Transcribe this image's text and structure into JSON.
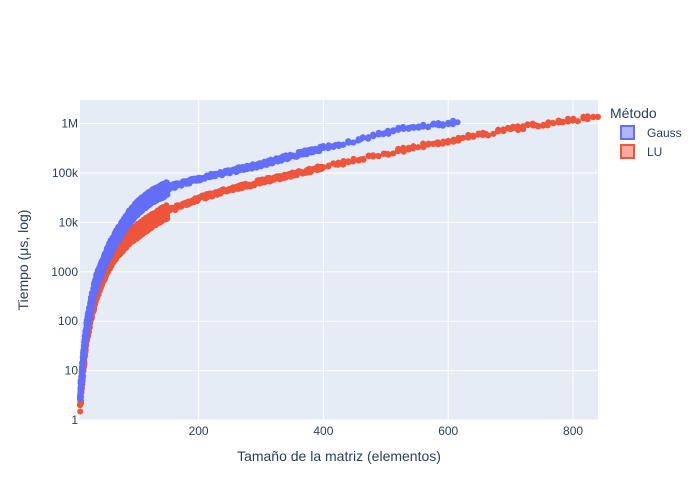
{
  "chart_data": {
    "type": "scatter",
    "title": "",
    "xlabel": "Tamaño de la matriz (elementos)",
    "ylabel": "Tiempo (μs, log)",
    "xlim": [
      10,
      840
    ],
    "ylim": [
      1,
      3000000
    ],
    "x_scale": "linear",
    "y_scale": "log",
    "x_ticks": [
      {
        "value": 200,
        "label": "200"
      },
      {
        "value": 400,
        "label": "400"
      },
      {
        "value": 600,
        "label": "600"
      },
      {
        "value": 800,
        "label": "800"
      }
    ],
    "y_ticks": [
      {
        "value": 1,
        "label": "1"
      },
      {
        "value": 10,
        "label": "10"
      },
      {
        "value": 100,
        "label": "100"
      },
      {
        "value": 1000,
        "label": "1000"
      },
      {
        "value": 10000,
        "label": "10k"
      },
      {
        "value": 100000,
        "label": "100k"
      },
      {
        "value": 1000000,
        "label": "1M"
      }
    ],
    "grid": true,
    "legend": {
      "title": "Método",
      "placement": "right"
    },
    "series": [
      {
        "name": "Gauss",
        "color": "#636efa",
        "points": [
          [
            10,
            3
          ],
          [
            12,
            6
          ],
          [
            14,
            12
          ],
          [
            16,
            22
          ],
          [
            18,
            40
          ],
          [
            20,
            60
          ],
          [
            22,
            90
          ],
          [
            25,
            140
          ],
          [
            28,
            220
          ],
          [
            30,
            300
          ],
          [
            33,
            420
          ],
          [
            36,
            600
          ],
          [
            40,
            850
          ],
          [
            45,
            1200
          ],
          [
            50,
            1700
          ],
          [
            55,
            2400
          ],
          [
            60,
            3300
          ],
          [
            65,
            4300
          ],
          [
            70,
            5500
          ],
          [
            75,
            6800
          ],
          [
            80,
            8500
          ],
          [
            85,
            10500
          ],
          [
            90,
            13000
          ],
          [
            95,
            15500
          ],
          [
            100,
            18500
          ],
          [
            110,
            24000
          ],
          [
            120,
            30000
          ],
          [
            130,
            36000
          ],
          [
            140,
            42000
          ],
          [
            150,
            48000
          ],
          [
            160,
            54000
          ],
          [
            175,
            62000
          ],
          [
            190,
            70000
          ],
          [
            200,
            76000
          ],
          [
            220,
            88000
          ],
          [
            240,
            100000
          ],
          [
            260,
            115000
          ],
          [
            280,
            130000
          ],
          [
            300,
            150000
          ],
          [
            320,
            175000
          ],
          [
            340,
            205000
          ],
          [
            360,
            240000
          ],
          [
            380,
            280000
          ],
          [
            400,
            320000
          ],
          [
            420,
            370000
          ],
          [
            440,
            420000
          ],
          [
            460,
            480000
          ],
          [
            480,
            560000
          ],
          [
            500,
            650000
          ],
          [
            520,
            750000
          ],
          [
            540,
            840000
          ],
          [
            560,
            900000
          ],
          [
            580,
            960000
          ],
          [
            600,
            1020000
          ],
          [
            615,
            1060000
          ]
        ]
      },
      {
        "name": "LU",
        "color": "#ef553b",
        "points": [
          [
            10,
            2
          ],
          [
            12,
            4
          ],
          [
            14,
            8
          ],
          [
            16,
            15
          ],
          [
            18,
            26
          ],
          [
            20,
            40
          ],
          [
            22,
            58
          ],
          [
            25,
            90
          ],
          [
            28,
            140
          ],
          [
            30,
            180
          ],
          [
            33,
            260
          ],
          [
            36,
            360
          ],
          [
            40,
            500
          ],
          [
            45,
            720
          ],
          [
            50,
            1000
          ],
          [
            55,
            1350
          ],
          [
            60,
            1750
          ],
          [
            65,
            2200
          ],
          [
            70,
            2700
          ],
          [
            75,
            3200
          ],
          [
            80,
            3800
          ],
          [
            85,
            4400
          ],
          [
            90,
            5000
          ],
          [
            95,
            5700
          ],
          [
            100,
            6400
          ],
          [
            110,
            8000
          ],
          [
            120,
            9800
          ],
          [
            130,
            11800
          ],
          [
            140,
            14000
          ],
          [
            150,
            16500
          ],
          [
            160,
            19000
          ],
          [
            175,
            23000
          ],
          [
            190,
            27000
          ],
          [
            200,
            30000
          ],
          [
            220,
            36000
          ],
          [
            240,
            43000
          ],
          [
            260,
            50000
          ],
          [
            280,
            58000
          ],
          [
            300,
            67000
          ],
          [
            320,
            77000
          ],
          [
            340,
            88000
          ],
          [
            360,
            100000
          ],
          [
            380,
            115000
          ],
          [
            400,
            130000
          ],
          [
            420,
            148000
          ],
          [
            440,
            168000
          ],
          [
            460,
            190000
          ],
          [
            480,
            215000
          ],
          [
            500,
            245000
          ],
          [
            520,
            280000
          ],
          [
            540,
            320000
          ],
          [
            560,
            360000
          ],
          [
            580,
            400000
          ],
          [
            600,
            450000
          ],
          [
            620,
            500000
          ],
          [
            640,
            560000
          ],
          [
            660,
            620000
          ],
          [
            680,
            690000
          ],
          [
            700,
            770000
          ],
          [
            720,
            850000
          ],
          [
            740,
            930000
          ],
          [
            760,
            1010000
          ],
          [
            780,
            1100000
          ],
          [
            800,
            1190000
          ],
          [
            820,
            1280000
          ],
          [
            840,
            1360000
          ]
        ]
      }
    ]
  }
}
